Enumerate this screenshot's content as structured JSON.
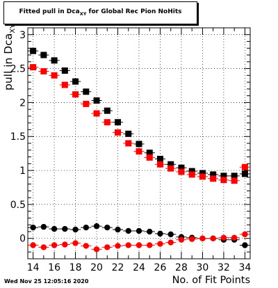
{
  "title": {
    "main": "Fitted pull in Dca",
    "sub": "XY",
    "rest": " for Global Rec Pion NoHits"
  },
  "ylabel": {
    "main": "pull in Dca",
    "sub": "XY"
  },
  "xlabel": "No. of Fit Points",
  "timestamp": "Wed Nov 25 12:05:16 2020",
  "chart_data": {
    "type": "scatter",
    "xlim": [
      13.5,
      34.5
    ],
    "ylim": [
      -0.3,
      3.1
    ],
    "x_ticks": [
      14,
      16,
      18,
      20,
      22,
      24,
      26,
      28,
      30,
      32,
      34
    ],
    "y_ticks": [
      0,
      0.5,
      1,
      1.5,
      2,
      2.5,
      3
    ],
    "y_tick_labels": [
      "0",
      "0.5",
      "1",
      "1.5",
      "2",
      "2.5",
      "3"
    ],
    "grid": true,
    "x": [
      14,
      15,
      16,
      17,
      18,
      19,
      20,
      21,
      22,
      23,
      24,
      25,
      26,
      27,
      28,
      29,
      30,
      31,
      32,
      33,
      34
    ],
    "series": [
      {
        "marker": "square",
        "color": "#000000",
        "values": [
          2.76,
          2.7,
          2.62,
          2.47,
          2.31,
          2.16,
          2.03,
          1.88,
          1.71,
          1.54,
          1.39,
          1.26,
          1.17,
          1.09,
          1.04,
          0.99,
          0.96,
          0.94,
          0.92,
          0.92,
          0.95
        ]
      },
      {
        "marker": "square",
        "color": "#ff0000",
        "values": [
          2.52,
          2.46,
          2.4,
          2.26,
          2.12,
          1.98,
          1.84,
          1.71,
          1.56,
          1.4,
          1.28,
          1.19,
          1.09,
          1.03,
          0.98,
          0.94,
          0.91,
          0.88,
          0.86,
          0.85,
          1.05
        ]
      },
      {
        "marker": "circle",
        "color": "#000000",
        "values": [
          0.16,
          0.17,
          0.14,
          0.14,
          0.13,
          0.16,
          0.18,
          0.16,
          0.13,
          0.11,
          0.11,
          0.1,
          0.07,
          0.06,
          0.02,
          0.01,
          0.0,
          0.0,
          -0.02,
          -0.02,
          -0.1
        ]
      },
      {
        "marker": "circle",
        "color": "#ff0000",
        "values": [
          -0.1,
          -0.13,
          -0.1,
          -0.09,
          -0.07,
          -0.11,
          -0.16,
          -0.13,
          -0.11,
          -0.1,
          -0.1,
          -0.1,
          -0.08,
          -0.06,
          -0.02,
          -0.01,
          0.0,
          0.0,
          0.01,
          0.01,
          0.06
        ]
      }
    ]
  }
}
